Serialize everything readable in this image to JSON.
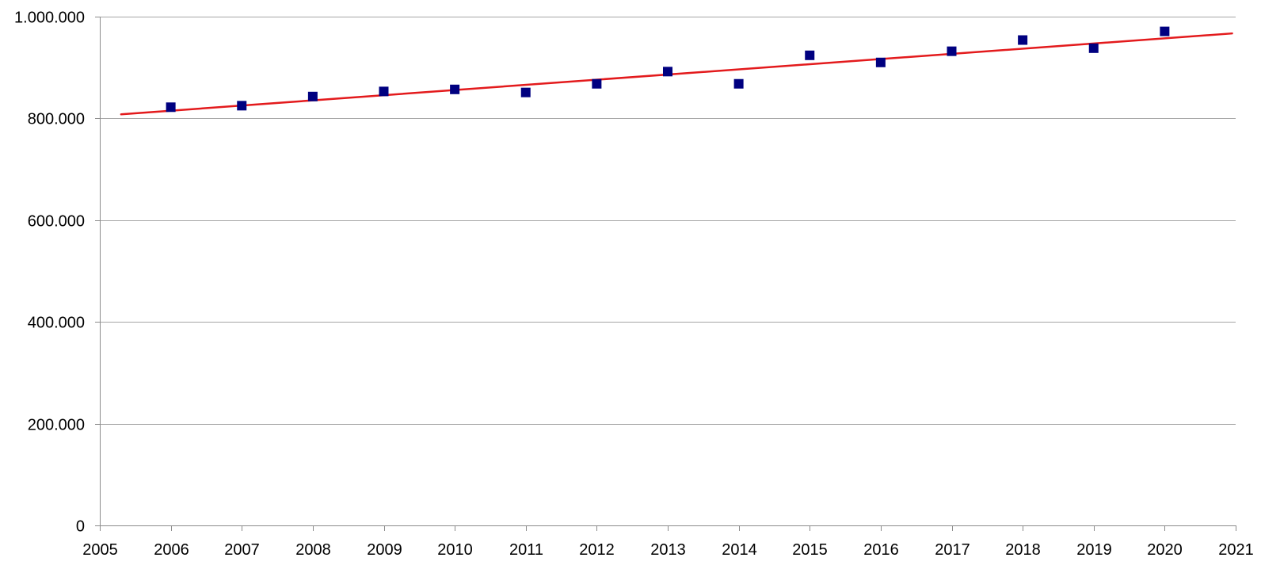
{
  "chart_data": {
    "type": "scatter",
    "title": "",
    "xlabel": "",
    "ylabel": "",
    "xlim": [
      2005,
      2021
    ],
    "ylim": [
      0,
      1000000
    ],
    "x_ticks": [
      2005,
      2006,
      2007,
      2008,
      2009,
      2010,
      2011,
      2012,
      2013,
      2014,
      2015,
      2016,
      2017,
      2018,
      2019,
      2020,
      2021
    ],
    "x_tick_labels": [
      "2005",
      "2006",
      "2007",
      "2008",
      "2009",
      "2010",
      "2011",
      "2012",
      "2013",
      "2014",
      "2015",
      "2016",
      "2017",
      "2018",
      "2019",
      "2020",
      "2021"
    ],
    "y_ticks": [
      0,
      200000,
      400000,
      600000,
      800000,
      1000000
    ],
    "y_tick_labels": [
      "0",
      "200.000",
      "400.000",
      "600.000",
      "800.000",
      "1.000.000"
    ],
    "grid": "horizontal",
    "legend": "none",
    "series": [
      {
        "x": [
          2006,
          2007,
          2008,
          2009,
          2010,
          2011,
          2012,
          2013,
          2014,
          2015,
          2016,
          2017,
          2018,
          2019,
          2020
        ],
        "y": [
          822000,
          825000,
          843000,
          853000,
          857000,
          851000,
          868000,
          892000,
          868000,
          924000,
          910000,
          932000,
          954000,
          938000,
          971000
        ],
        "color": "#000080",
        "marker": "square"
      }
    ],
    "trendline": {
      "type": "linear",
      "x": [
        2005.3,
        2020.95
      ],
      "y": [
        808000,
        967000
      ],
      "color": "#e31a1c"
    }
  }
}
